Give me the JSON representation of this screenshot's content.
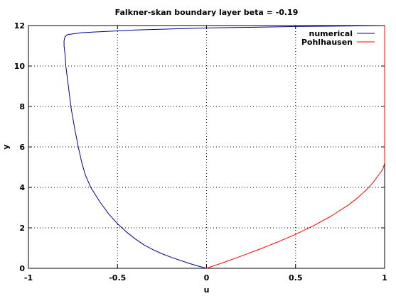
{
  "chart_data": {
    "type": "line",
    "title": "Falkner-skan boundary layer beta = -0.19",
    "xlabel": "u",
    "ylabel": "y",
    "xlim": [
      -1,
      1
    ],
    "ylim": [
      0,
      12
    ],
    "x_ticks": [
      -1,
      -0.5,
      0,
      0.5,
      1
    ],
    "y_ticks": [
      0,
      2,
      4,
      6,
      8,
      10,
      12
    ],
    "x_tick_labels": [
      "-1",
      "-0.5",
      "0",
      "0.5",
      "1"
    ],
    "y_tick_labels": [
      "0",
      "2",
      "4",
      "6",
      "8",
      "10",
      "12"
    ],
    "grid": true,
    "legend_position": "top-right",
    "series": [
      {
        "name": "numerical",
        "color": "#00008b",
        "x": [
          0.0,
          -0.05,
          -0.1,
          -0.15,
          -0.2,
          -0.25,
          -0.3,
          -0.35,
          -0.4,
          -0.45,
          -0.5,
          -0.55,
          -0.6,
          -0.65,
          -0.68,
          -0.7,
          -0.72,
          -0.74,
          -0.76,
          -0.77,
          -0.78,
          -0.79,
          -0.795,
          -0.8,
          -0.8,
          -0.795,
          -0.78,
          -0.7,
          -0.4,
          0.0,
          0.5,
          0.8,
          1.0
        ],
        "y": [
          0.0,
          0.12,
          0.25,
          0.4,
          0.55,
          0.72,
          0.92,
          1.15,
          1.45,
          1.8,
          2.2,
          2.7,
          3.3,
          4.0,
          4.6,
          5.2,
          6.0,
          6.9,
          7.9,
          8.6,
          9.3,
          10.0,
          10.6,
          11.0,
          11.25,
          11.45,
          11.55,
          11.65,
          11.78,
          11.88,
          11.95,
          11.98,
          12.0
        ]
      },
      {
        "name": "Pohlhausen",
        "color": "#ff0000",
        "x": [
          0.0,
          0.1,
          0.2,
          0.3,
          0.4,
          0.5,
          0.6,
          0.7,
          0.8,
          0.85,
          0.9,
          0.94,
          0.97,
          0.99,
          1.0,
          1.0,
          1.0,
          1.0
        ],
        "y": [
          0.0,
          0.3,
          0.62,
          0.95,
          1.3,
          1.68,
          2.1,
          2.58,
          3.15,
          3.5,
          3.9,
          4.3,
          4.65,
          4.9,
          5.2,
          7.0,
          10.0,
          12.0
        ]
      }
    ]
  }
}
